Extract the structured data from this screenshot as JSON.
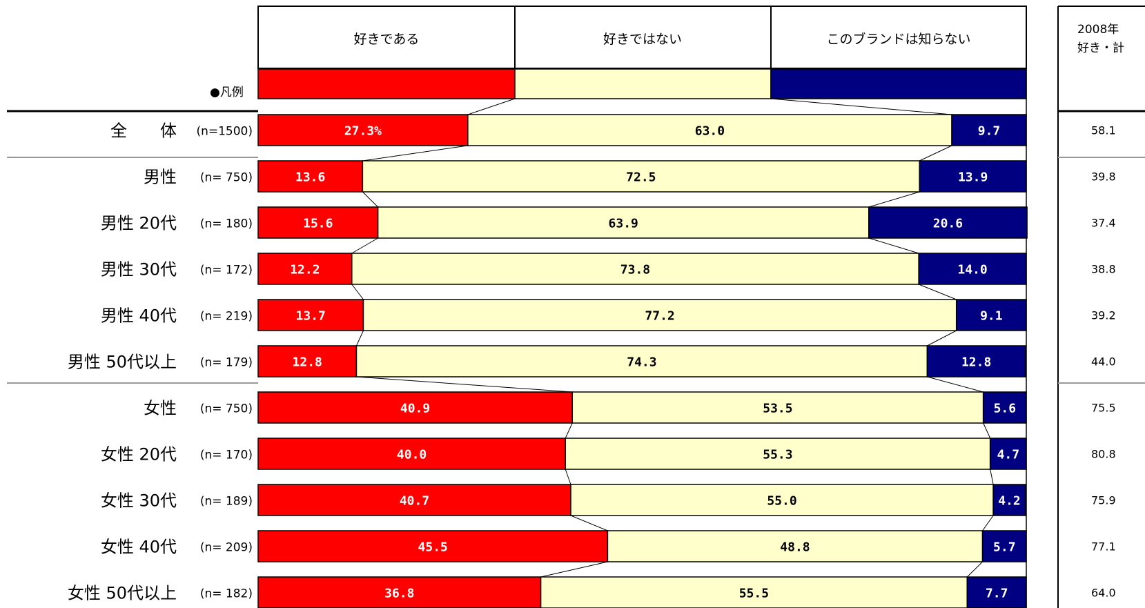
{
  "colors": {
    "like": "#ff0000",
    "dislike": "#ffffcc",
    "unknown": "#000080"
  },
  "legend_label": "●凡例",
  "chart_data": {
    "type": "bar",
    "orientation": "horizontal-stacked-100",
    "categories": [
      "全　　体",
      "男性",
      "男性 20代",
      "男性 30代",
      "男性 40代",
      "男性 50代以上",
      "女性",
      "女性 20代",
      "女性 30代",
      "女性 40代",
      "女性 50代以上"
    ],
    "n_labels": [
      "(n=1500)",
      "(n= 750)",
      "(n= 180)",
      "(n= 172)",
      "(n= 219)",
      "(n= 179)",
      "(n= 750)",
      "(n= 170)",
      "(n= 189)",
      "(n= 209)",
      "(n= 182)"
    ],
    "series": [
      {
        "name": "好きである",
        "values": [
          27.3,
          13.6,
          15.6,
          12.2,
          13.7,
          12.8,
          40.9,
          40.0,
          40.7,
          45.5,
          36.8
        ]
      },
      {
        "name": "好きではない",
        "values": [
          63.0,
          72.5,
          63.9,
          73.8,
          77.2,
          74.3,
          53.5,
          55.3,
          55.0,
          48.8,
          55.5
        ]
      },
      {
        "name": "このブランドは知らない",
        "values": [
          9.7,
          13.9,
          20.6,
          14.0,
          9.1,
          12.8,
          5.6,
          4.7,
          4.2,
          5.7,
          7.7
        ]
      }
    ],
    "value_labels": [
      [
        "27.3%",
        "63.0",
        "9.7"
      ],
      [
        "13.6",
        "72.5",
        "13.9"
      ],
      [
        "15.6",
        "63.9",
        "20.6"
      ],
      [
        "12.2",
        "73.8",
        "14.0"
      ],
      [
        "13.7",
        "77.2",
        "9.1"
      ],
      [
        "12.8",
        "74.3",
        "12.8"
      ],
      [
        "40.9",
        "53.5",
        "5.6"
      ],
      [
        "40.0",
        "55.3",
        "4.7"
      ],
      [
        "40.7",
        "55.0",
        "4.2"
      ],
      [
        "45.5",
        "48.8",
        "5.7"
      ],
      [
        "36.8",
        "55.5",
        "7.7"
      ]
    ],
    "year_column": {
      "header_line1": "2008年",
      "header_line2": "好き・計",
      "values": [
        "58.1",
        "39.8",
        "37.4",
        "38.8",
        "39.2",
        "44.0",
        "75.5",
        "80.8",
        "75.9",
        "77.1",
        "64.0"
      ]
    },
    "xlim": [
      0,
      100
    ]
  }
}
